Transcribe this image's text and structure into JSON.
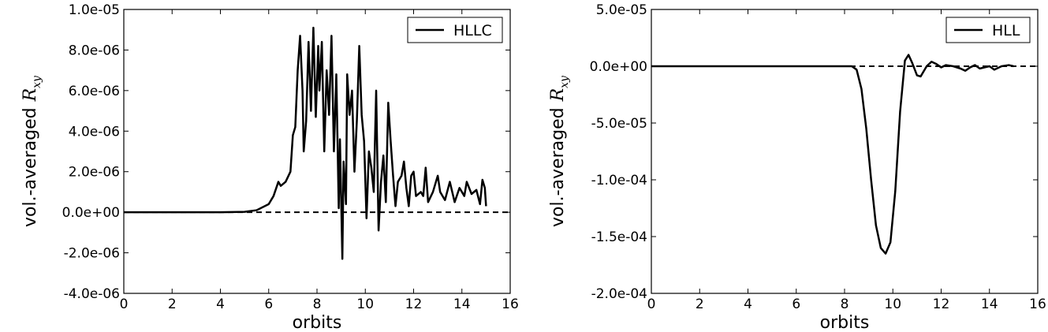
{
  "chart_data": [
    {
      "type": "line",
      "xlabel": "orbits",
      "ylabel": {
        "text": "vol.-averaged",
        "symbol": "R",
        "subscript": "xy"
      },
      "xlim": [
        0,
        16
      ],
      "xticks": [
        0,
        2,
        4,
        6,
        8,
        10,
        12,
        14,
        16
      ],
      "ylim": [
        -4e-06,
        1e-05
      ],
      "yticks": [
        {
          "value": -4e-06,
          "label": "-4.0e-06"
        },
        {
          "value": -2e-06,
          "label": "-2.0e-06"
        },
        {
          "value": 0,
          "label": "0.0e+00"
        },
        {
          "value": 2e-06,
          "label": "2.0e-06"
        },
        {
          "value": 4e-06,
          "label": "4.0e-06"
        },
        {
          "value": 6e-06,
          "label": "6.0e-06"
        },
        {
          "value": 8e-06,
          "label": "8.0e-06"
        },
        {
          "value": 1e-05,
          "label": "1.0e-05"
        }
      ],
      "hline": 0,
      "legend": "upper right",
      "x": [
        0,
        1,
        2,
        3,
        4,
        5,
        5.5,
        6,
        6.2,
        6.4,
        6.5,
        6.7,
        6.9,
        7.0,
        7.1,
        7.2,
        7.3,
        7.4,
        7.45,
        7.55,
        7.65,
        7.75,
        7.85,
        7.95,
        8.05,
        8.1,
        8.2,
        8.3,
        8.4,
        8.5,
        8.6,
        8.7,
        8.8,
        8.9,
        8.95,
        9.05,
        9.1,
        9.2,
        9.25,
        9.35,
        9.45,
        9.55,
        9.65,
        9.75,
        9.85,
        9.95,
        10.05,
        10.15,
        10.25,
        10.35,
        10.45,
        10.55,
        10.65,
        10.75,
        10.85,
        10.95,
        11.05,
        11.15,
        11.25,
        11.35,
        11.5,
        11.6,
        11.7,
        11.8,
        11.9,
        12.0,
        12.1,
        12.3,
        12.4,
        12.5,
        12.6,
        12.8,
        13.0,
        13.1,
        13.3,
        13.5,
        13.7,
        13.9,
        14.1,
        14.2,
        14.4,
        14.6,
        14.75,
        14.85,
        14.95,
        15.0
      ],
      "series": [
        {
          "name": "HLLC",
          "color": "#000000",
          "values": [
            0,
            0,
            0,
            0,
            0,
            2e-08,
            1e-07,
            4e-07,
            8e-07,
            1.5e-06,
            1.3e-06,
            1.5e-06,
            2e-06,
            3.8e-06,
            4.2e-06,
            7e-06,
            8.7e-06,
            6e-06,
            3e-06,
            4.5e-06,
            8.4e-06,
            5e-06,
            9.1e-06,
            4.7e-06,
            8.2e-06,
            6e-06,
            8.4e-06,
            3e-06,
            7e-06,
            4.8e-06,
            8.7e-06,
            3e-06,
            6.8e-06,
            2e-07,
            3.6e-06,
            -2.3e-06,
            2.5e-06,
            4e-07,
            6.8e-06,
            4.8e-06,
            6e-06,
            2e-06,
            4.5e-06,
            8.2e-06,
            4.8e-06,
            3.5e-06,
            -3e-07,
            3e-06,
            2.2e-06,
            1e-06,
            6e-06,
            -9e-07,
            1.5e-06,
            2.8e-06,
            5e-07,
            5.4e-06,
            3.5e-06,
            1.8e-06,
            3e-07,
            1.5e-06,
            1.8e-06,
            2.5e-06,
            1.2e-06,
            3e-07,
            1.8e-06,
            2e-06,
            8e-07,
            1e-06,
            8e-07,
            2.2e-06,
            5e-07,
            1e-06,
            1.8e-06,
            1e-06,
            6e-07,
            1.5e-06,
            5e-07,
            1.2e-06,
            8e-07,
            1.5e-06,
            9e-07,
            1.1e-06,
            4e-07,
            1.6e-06,
            1.2e-06,
            3e-07
          ]
        }
      ]
    },
    {
      "type": "line",
      "xlabel": "orbits",
      "ylabel": {
        "text": "vol.-averaged",
        "symbol": "R",
        "subscript": "xy"
      },
      "xlim": [
        0,
        16
      ],
      "xticks": [
        0,
        2,
        4,
        6,
        8,
        10,
        12,
        14,
        16
      ],
      "ylim": [
        -0.0002,
        5e-05
      ],
      "yticks": [
        {
          "value": -0.0002,
          "label": "-2.0e-04"
        },
        {
          "value": -0.00015,
          "label": "-1.5e-04"
        },
        {
          "value": -0.0001,
          "label": "-1.0e-04"
        },
        {
          "value": -5e-05,
          "label": "-5.0e-05"
        },
        {
          "value": 0,
          "label": "0.0e+00"
        },
        {
          "value": 5e-05,
          "label": "5.0e-05"
        }
      ],
      "hline": 0,
      "legend": "upper right",
      "x": [
        0,
        2,
        4,
        6,
        8,
        8.3,
        8.5,
        8.7,
        8.9,
        9.1,
        9.3,
        9.5,
        9.7,
        9.9,
        10.1,
        10.3,
        10.5,
        10.65,
        10.8,
        11.0,
        11.15,
        11.4,
        11.6,
        11.8,
        12.0,
        12.2,
        12.5,
        12.8,
        13.0,
        13.2,
        13.4,
        13.6,
        13.8,
        14.0,
        14.2,
        14.5,
        14.8,
        15.0
      ],
      "series": [
        {
          "name": "HLL",
          "color": "#000000",
          "values": [
            0,
            0,
            0,
            0,
            0,
            0,
            -3e-06,
            -2e-05,
            -5.5e-05,
            -0.0001,
            -0.00014,
            -0.00016,
            -0.000165,
            -0.000155,
            -0.00011,
            -4e-05,
            5e-06,
            1e-05,
            3e-06,
            -8e-06,
            -9e-06,
            0,
            4e-06,
            2e-06,
            -1e-06,
            1e-06,
            0,
            -2e-06,
            -4e-06,
            -1e-06,
            1e-06,
            -2e-06,
            -1e-06,
            0,
            -3e-06,
            0,
            1e-06,
            0
          ]
        }
      ]
    }
  ]
}
